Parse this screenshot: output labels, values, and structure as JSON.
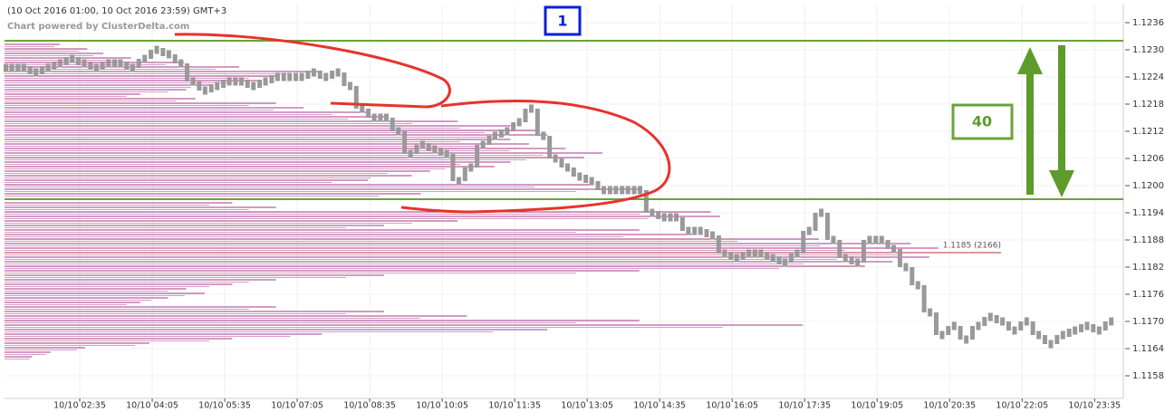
{
  "chart_data": {
    "type": "price-blocks",
    "title": "(10 Oct 2016 01:00, 10 Oct 2016 23:59) GMT+3",
    "subtitle": "Chart powered by ClusterDelta.com",
    "color": "#999999",
    "values": [
      1.1226,
      1.1226,
      1.1225,
      1.1226,
      1.1227,
      1.1228,
      1.1227,
      1.1226,
      1.1227,
      1.1227,
      1.1226,
      1.1228,
      1.123,
      1.1229,
      1.1227,
      1.1223,
      1.1221,
      1.1222,
      1.1223,
      1.1223,
      1.1222,
      1.1223,
      1.1224,
      1.1224,
      1.1224,
      1.1225,
      1.1224,
      1.1225,
      1.1222,
      1.1217,
      1.1215,
      1.1215,
      1.1212,
      1.1207,
      1.1209,
      1.1208,
      1.1207,
      1.1201,
      1.1204,
      1.1209,
      1.1211,
      1.1212,
      1.1214,
      1.1217,
      1.1211,
      1.1206,
      1.1204,
      1.1202,
      1.1201,
      1.1199,
      1.1199,
      1.1199,
      1.1199,
      1.1194,
      1.1193,
      1.1193,
      1.119,
      1.119,
      1.1189,
      1.1185,
      1.1184,
      1.1185,
      1.1185,
      1.1184,
      1.1183,
      1.1185,
      1.119,
      1.1194,
      1.1188,
      1.1184,
      1.1183,
      1.1188,
      1.1188,
      1.1186,
      1.1182,
      1.1178,
      1.1172,
      1.1167,
      1.1169,
      1.1166,
      1.1169,
      1.1171,
      1.117,
      1.1168,
      1.117,
      1.1167,
      1.1165,
      1.1167,
      1.1168,
      1.1169,
      1.1168,
      1.117
    ],
    "xlim": [
      0,
      92
    ],
    "xticks": [
      {
        "value": 6,
        "label": "10/10 02:35"
      },
      {
        "value": 12,
        "label": "10/10 04:05"
      },
      {
        "value": 18,
        "label": "10/10 05:35"
      },
      {
        "value": 24,
        "label": "10/10 07:05"
      },
      {
        "value": 30,
        "label": "10/10 08:35"
      },
      {
        "value": 36,
        "label": "10/10 10:05"
      },
      {
        "value": 42,
        "label": "10/10 11:35"
      },
      {
        "value": 48,
        "label": "10/10 13:05"
      },
      {
        "value": 54,
        "label": "10/10 14:35"
      },
      {
        "value": 60,
        "label": "10/10 16:05"
      },
      {
        "value": 66,
        "label": "10/10 17:35"
      },
      {
        "value": 72,
        "label": "10/10 19:05"
      },
      {
        "value": 78,
        "label": "10/10 20:35"
      },
      {
        "value": 84,
        "label": "10/10 22:05"
      },
      {
        "value": 90,
        "label": "10/10 23:35"
      }
    ],
    "ylim": [
      1.1153,
      1.124
    ],
    "yticks": [
      1.1236,
      {
        "value": 1.123,
        "label": "1.1230"
      },
      1.1224,
      1.1218,
      1.1212,
      1.1206,
      {
        "value": 1.12,
        "label": "1.1200"
      },
      1.1194,
      1.1188,
      1.1182,
      1.1176,
      {
        "value": 1.117,
        "label": "1.1170"
      },
      1.1164,
      1.1158
    ],
    "grid": true,
    "volume_profile": {
      "color": "#a8378a",
      "levels": [
        1.1231,
        1.123,
        1.1229,
        1.1228,
        1.1227,
        1.1226,
        1.1225,
        1.1224,
        1.1223,
        1.1222,
        1.1221,
        1.122,
        1.1219,
        1.1218,
        1.1217,
        1.1216,
        1.1215,
        1.1214,
        1.1213,
        1.1212,
        1.1211,
        1.121,
        1.1209,
        1.1208,
        1.1207,
        1.1206,
        1.1205,
        1.1204,
        1.1203,
        1.1202,
        1.1201,
        1.12,
        1.1199,
        1.1198,
        1.1196,
        1.1195,
        1.1194,
        1.1193,
        1.1192,
        1.1191,
        1.119,
        1.1189,
        1.1188,
        1.1187,
        1.1186,
        1.1185,
        1.1184,
        1.1183,
        1.1182,
        1.1181,
        1.118,
        1.1179,
        1.1178,
        1.1177,
        1.1176,
        1.1175,
        1.1174,
        1.1173,
        1.1172,
        1.1171,
        1.117,
        1.1169,
        1.1168,
        1.1167,
        1.1166,
        1.1165,
        1.1164,
        1.1163,
        1.1162
      ],
      "volumes": [
        120,
        180,
        215,
        275,
        390,
        510,
        690,
        590,
        550,
        450,
        395,
        295,
        415,
        590,
        650,
        790,
        830,
        985,
        1100,
        1160,
        1180,
        1100,
        1140,
        1220,
        1300,
        1260,
        1100,
        1065,
        925,
        885,
        790,
        1280,
        1380,
        905,
        495,
        590,
        1535,
        1555,
        985,
        825,
        1380,
        1495,
        1770,
        1970,
        2030,
        2166,
        2010,
        1930,
        1870,
        1380,
        825,
        590,
        495,
        395,
        435,
        355,
        295,
        590,
        825,
        1005,
        1380,
        1735,
        1180,
        690,
        495,
        315,
        175,
        100,
        60
      ],
      "poc_label": "1.1185 (2166)"
    },
    "levels": [
      1.1232,
      1.1197
    ],
    "level_color": "#6aa33a",
    "annotations": [
      "1",
      "40"
    ]
  }
}
